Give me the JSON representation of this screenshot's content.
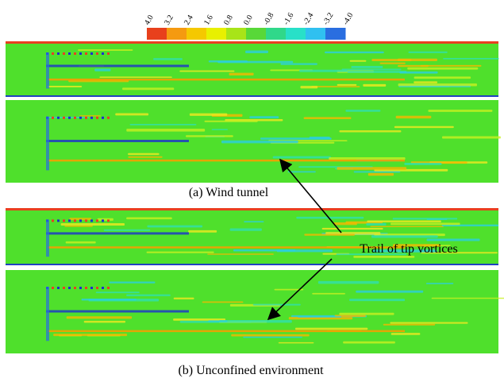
{
  "colorbar": {
    "labels": [
      "4.0",
      "3.2",
      "2.4",
      "1.6",
      "0.8",
      "0.0",
      "-0.8",
      "-1.6",
      "-2.4",
      "-3.2",
      "-4.0"
    ],
    "colors": [
      "#e8401c",
      "#f59a10",
      "#f5c800",
      "#e8f000",
      "#a8e418",
      "#58d838",
      "#30d88a",
      "#28e0c8",
      "#30c0f0",
      "#2a6ee0"
    ]
  },
  "captions": {
    "a": "(a) Wind tunnel",
    "b": "(b) Unconfined environment"
  },
  "annotation": "Trail of tip vortices"
}
